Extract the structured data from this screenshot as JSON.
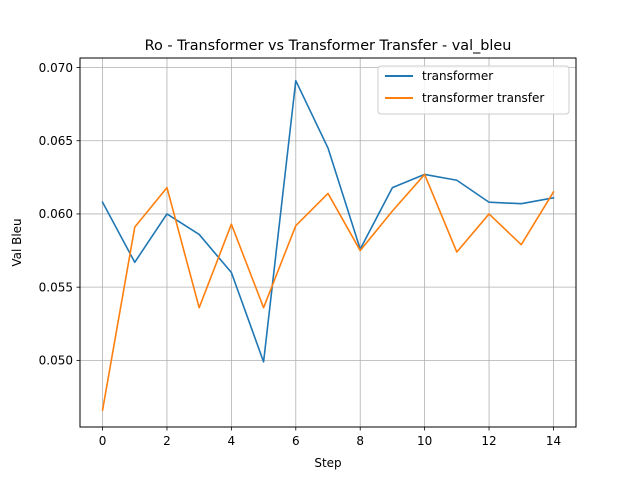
{
  "chart_data": {
    "type": "line",
    "title": "Ro - Transformer vs Transformer Transfer - val_bleu",
    "xlabel": "Step",
    "ylabel": "Val Bleu",
    "xlim": [
      -0.7,
      14.7
    ],
    "ylim": [
      0.04545,
      0.07065
    ],
    "x_ticks": [
      0,
      2,
      4,
      6,
      8,
      10,
      12,
      14
    ],
    "y_ticks": [
      0.05,
      0.055,
      0.06,
      0.065,
      0.07
    ],
    "x_tick_labels": [
      "0",
      "2",
      "4",
      "6",
      "8",
      "10",
      "12",
      "14"
    ],
    "y_tick_labels": [
      "0.050",
      "0.055",
      "0.060",
      "0.065",
      "0.070"
    ],
    "grid": true,
    "legend_position": "top-right",
    "x": [
      0,
      1,
      2,
      3,
      4,
      5,
      6,
      7,
      8,
      9,
      10,
      11,
      12,
      13,
      14
    ],
    "series": [
      {
        "name": "transformer",
        "color": "#1f77b4",
        "values": [
          0.0608,
          0.0567,
          0.06,
          0.0586,
          0.056,
          0.0499,
          0.0691,
          0.0645,
          0.0576,
          0.0618,
          0.0627,
          0.0623,
          0.0608,
          0.0607,
          0.0611
        ]
      },
      {
        "name": "transformer transfer",
        "color": "#ff7f0e",
        "values": [
          0.0466,
          0.0591,
          0.0618,
          0.0536,
          0.0593,
          0.0536,
          0.0592,
          0.0614,
          0.0575,
          0.0602,
          0.0627,
          0.0574,
          0.06,
          0.0579,
          0.0615
        ]
      }
    ]
  }
}
